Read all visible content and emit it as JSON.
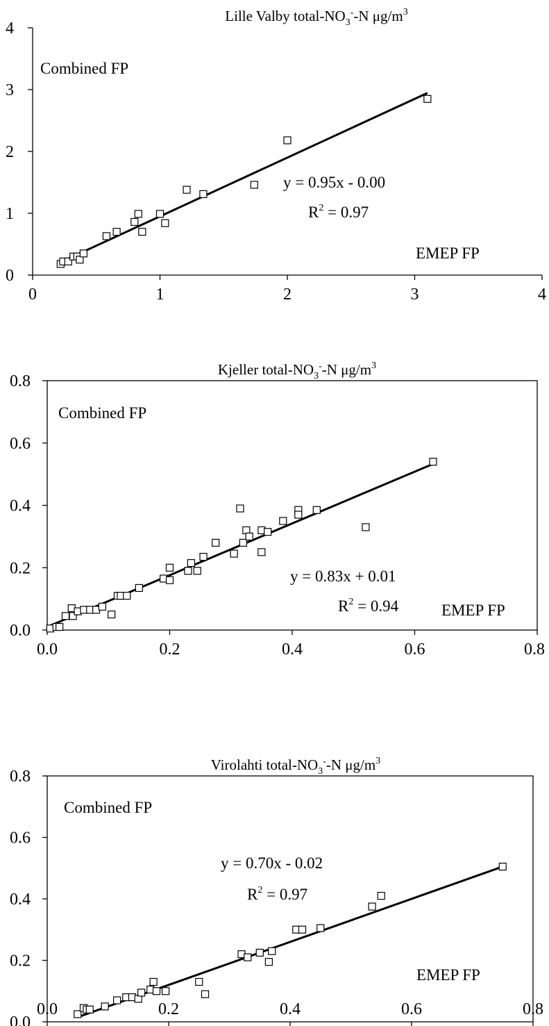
{
  "chart_data": [
    {
      "type": "scatter",
      "title_parts": {
        "pre": "Lille Valby  total-NO",
        "sub": "3",
        "sup": "-",
        "post": "-N μg/m",
        "sup2": "3"
      },
      "xlim": [
        0,
        4
      ],
      "ylim": [
        0,
        4
      ],
      "xticks": [
        0,
        1,
        2,
        3,
        4
      ],
      "yticks": [
        0,
        1,
        2,
        3,
        4
      ],
      "xtick_labels": [
        "0",
        "1",
        "2",
        "3",
        "4"
      ],
      "ytick_labels": [
        "0",
        "1",
        "2",
        "3",
        "4"
      ],
      "ylabel_note": "Combined FP",
      "xlabel_note": "EMEP FP",
      "equation": "y = 0.95x - 0.00",
      "r2_value": " = 0.97",
      "fit": {
        "slope": 0.95,
        "intercept": 0.0,
        "x_range": [
          0.22,
          3.1
        ]
      },
      "points": [
        [
          0.22,
          0.18
        ],
        [
          0.24,
          0.22
        ],
        [
          0.28,
          0.22
        ],
        [
          0.32,
          0.3
        ],
        [
          0.35,
          0.3
        ],
        [
          0.37,
          0.25
        ],
        [
          0.4,
          0.35
        ],
        [
          0.58,
          0.63
        ],
        [
          0.66,
          0.7
        ],
        [
          0.8,
          0.86
        ],
        [
          0.83,
          0.99
        ],
        [
          0.86,
          0.7
        ],
        [
          1.0,
          0.99
        ],
        [
          1.04,
          0.84
        ],
        [
          1.21,
          1.38
        ],
        [
          1.34,
          1.31
        ],
        [
          1.74,
          1.46
        ],
        [
          2.0,
          2.18
        ],
        [
          3.1,
          2.85
        ]
      ]
    },
    {
      "type": "scatter",
      "title_parts": {
        "pre": "Kjeller total-NO",
        "sub": "3",
        "sup": "-",
        "post": "-N μg/m",
        "sup2": "3"
      },
      "xlim": [
        0,
        0.8
      ],
      "ylim": [
        0,
        0.8
      ],
      "xticks": [
        0,
        0.2,
        0.4,
        0.6,
        0.8
      ],
      "yticks": [
        0,
        0.2,
        0.4,
        0.6,
        0.8
      ],
      "xtick_labels": [
        "0.0",
        "0.2",
        "0.4",
        "0.6",
        "0.8"
      ],
      "ytick_labels": [
        "0.0",
        "0.2",
        "0.4",
        "0.6",
        "0.8"
      ],
      "ylabel_note": "Combined FP",
      "xlabel_note": "EMEP FP",
      "equation": "y = 0.83x + 0.01",
      "r2_value": " = 0.94",
      "fit": {
        "slope": 0.83,
        "intercept": 0.01,
        "x_range": [
          0.0,
          0.63
        ]
      },
      "points": [
        [
          0.005,
          0.005
        ],
        [
          0.015,
          0.01
        ],
        [
          0.02,
          0.01
        ],
        [
          0.03,
          0.045
        ],
        [
          0.04,
          0.07
        ],
        [
          0.042,
          0.045
        ],
        [
          0.05,
          0.06
        ],
        [
          0.06,
          0.065
        ],
        [
          0.07,
          0.065
        ],
        [
          0.08,
          0.065
        ],
        [
          0.09,
          0.075
        ],
        [
          0.105,
          0.05
        ],
        [
          0.115,
          0.11
        ],
        [
          0.12,
          0.11
        ],
        [
          0.13,
          0.11
        ],
        [
          0.15,
          0.135
        ],
        [
          0.19,
          0.165
        ],
        [
          0.2,
          0.2
        ],
        [
          0.2,
          0.16
        ],
        [
          0.23,
          0.19
        ],
        [
          0.235,
          0.215
        ],
        [
          0.245,
          0.19
        ],
        [
          0.255,
          0.235
        ],
        [
          0.275,
          0.28
        ],
        [
          0.305,
          0.245
        ],
        [
          0.315,
          0.39
        ],
        [
          0.32,
          0.28
        ],
        [
          0.325,
          0.32
        ],
        [
          0.33,
          0.3
        ],
        [
          0.35,
          0.32
        ],
        [
          0.35,
          0.25
        ],
        [
          0.36,
          0.315
        ],
        [
          0.385,
          0.35
        ],
        [
          0.41,
          0.385
        ],
        [
          0.41,
          0.37
        ],
        [
          0.44,
          0.385
        ],
        [
          0.52,
          0.33
        ],
        [
          0.63,
          0.54
        ]
      ]
    },
    {
      "type": "scatter",
      "title_parts": {
        "pre": "Virolahti total-NO",
        "sub": "3",
        "sup": "-",
        "post": "-N μg/m",
        "sup2": "3"
      },
      "xlim": [
        0,
        0.8
      ],
      "ylim": [
        0,
        0.8
      ],
      "xticks": [
        0,
        0.2,
        0.4,
        0.6,
        0.8
      ],
      "yticks": [
        0,
        0.2,
        0.4,
        0.6,
        0.8
      ],
      "xtick_labels": [
        "0.0",
        "0.2",
        "0.4",
        "0.6",
        "0.8"
      ],
      "ytick_labels": [
        "0.0",
        "0.2",
        "0.4",
        "0.6",
        "0.8"
      ],
      "ylabel_note": "Combined FP",
      "xlabel_note": "EMEP FP",
      "equation": "y = 0.70x - 0.02",
      "r2_value": " = 0.97",
      "fit": {
        "slope": 0.7,
        "intercept": -0.02,
        "x_range": [
          0.05,
          0.75
        ]
      },
      "points": [
        [
          0.05,
          0.025
        ],
        [
          0.06,
          0.045
        ],
        [
          0.065,
          0.04
        ],
        [
          0.07,
          0.04
        ],
        [
          0.095,
          0.05
        ],
        [
          0.115,
          0.07
        ],
        [
          0.13,
          0.08
        ],
        [
          0.14,
          0.08
        ],
        [
          0.15,
          0.075
        ],
        [
          0.155,
          0.095
        ],
        [
          0.17,
          0.105
        ],
        [
          0.175,
          0.13
        ],
        [
          0.18,
          0.1
        ],
        [
          0.195,
          0.1
        ],
        [
          0.25,
          0.13
        ],
        [
          0.26,
          0.09
        ],
        [
          0.32,
          0.22
        ],
        [
          0.33,
          0.21
        ],
        [
          0.35,
          0.225
        ],
        [
          0.365,
          0.195
        ],
        [
          0.37,
          0.23
        ],
        [
          0.41,
          0.3
        ],
        [
          0.42,
          0.3
        ],
        [
          0.45,
          0.305
        ],
        [
          0.535,
          0.375
        ],
        [
          0.55,
          0.41
        ],
        [
          0.75,
          0.505
        ]
      ]
    }
  ]
}
